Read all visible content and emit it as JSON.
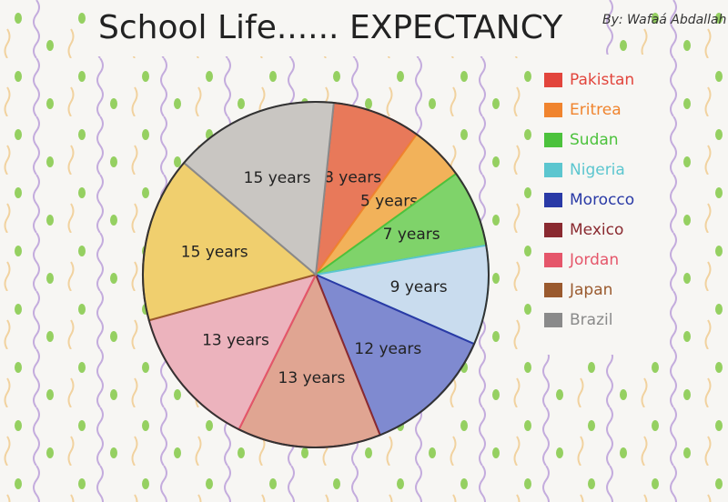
{
  "chart_data": {
    "type": "pie",
    "title": "School Life...... EXPECTANCY",
    "subtitle": "By: Wafaá Abdallah",
    "categories": [
      "Pakistan",
      "Eritrea",
      "Sudan",
      "Nigeria",
      "Morocco",
      "Mexico",
      "Jordan",
      "Japan",
      "Brazil"
    ],
    "values": [
      8,
      5,
      7,
      9,
      12,
      13,
      13,
      15,
      15
    ],
    "value_labels": [
      "8 years",
      "5 years",
      "7 years",
      "9 years",
      "12 years",
      "13 years",
      "13 years",
      "15 years",
      "15 years"
    ],
    "colors": [
      "#e8795a",
      "#f2b25a",
      "#7fd36a",
      "#c9dcee",
      "#7f8ad0",
      "#e0a592",
      "#ecb3bd",
      "#f0cf6e",
      "#c9c6c2"
    ],
    "legend_colors": [
      "#e2453c",
      "#f0842e",
      "#4cc23c",
      "#5cc6cf",
      "#2a3aa6",
      "#8a2a30",
      "#e5566a",
      "#9a5a2e",
      "#8a8a8a"
    ],
    "legend": "right"
  }
}
